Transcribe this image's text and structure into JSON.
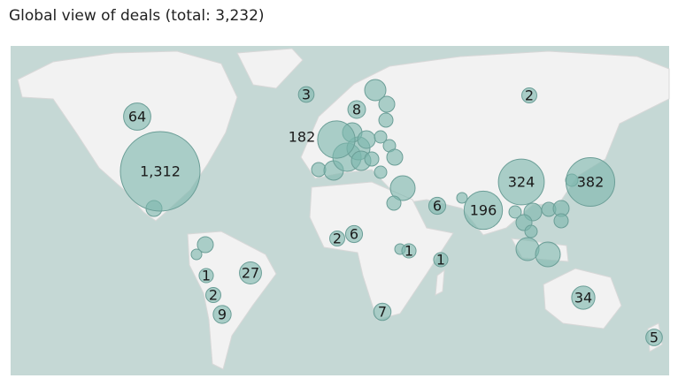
{
  "title": "Global view of deals (total: 3,232)",
  "bubbles": {
    "values": [
      1312,
      64,
      182,
      8,
      3,
      2,
      324,
      382,
      196,
      6,
      2,
      6,
      1,
      1,
      1,
      2,
      27,
      9,
      7,
      34,
      5
    ],
    "value_labels": [
      "1,312",
      "64",
      "182",
      "8",
      "3",
      "2",
      "324",
      "382",
      "196",
      "6",
      "2",
      "6",
      "1",
      "1",
      "1",
      "2",
      "27",
      "9",
      "7",
      "34",
      "5"
    ]
  }
}
